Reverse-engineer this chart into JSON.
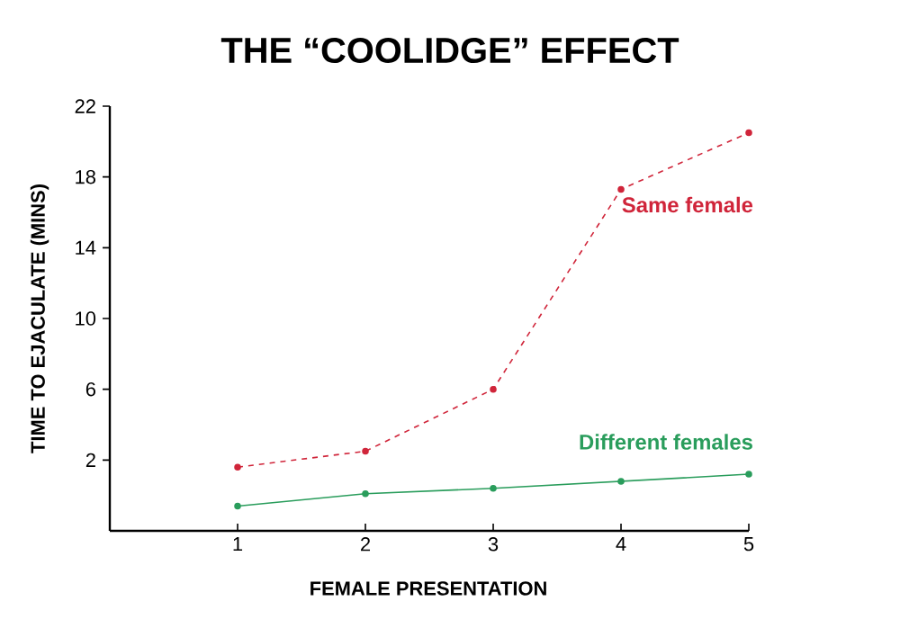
{
  "chart_data": {
    "type": "line",
    "title": "THE “COOLIDGE” EFFECT",
    "xlabel": "FEMALE PRESENTATION",
    "ylabel": "TIME TO EJACULATE (MINS)",
    "x": [
      1,
      2,
      3,
      4,
      5
    ],
    "xlim": [
      0,
      5
    ],
    "xticks": [
      1,
      2,
      3,
      4,
      5
    ],
    "ylim": [
      -2,
      22
    ],
    "yticks": [
      2,
      6,
      10,
      14,
      18,
      22
    ],
    "series": [
      {
        "name": "Same female",
        "color": "#d0253a",
        "values": [
          1.6,
          2.5,
          6,
          17.3,
          20.5
        ],
        "line_style": "dashed"
      },
      {
        "name": "Different females",
        "color": "#2a9d5c",
        "values": [
          -0.6,
          0.1,
          0.4,
          0.8,
          1.2
        ],
        "line_style": "solid"
      }
    ],
    "marker": "circle",
    "grid": false
  }
}
